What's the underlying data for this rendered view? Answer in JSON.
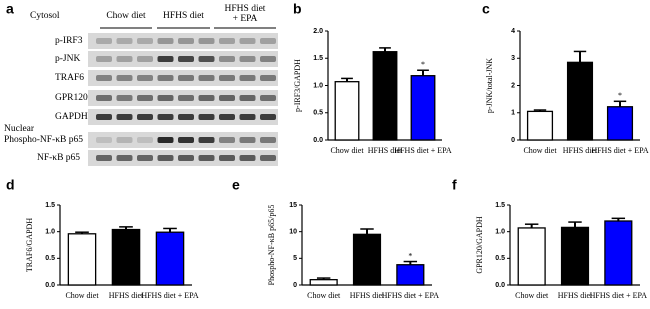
{
  "blot": {
    "panel": "a",
    "section": "Cytosol",
    "groups": [
      {
        "lines": [
          "Chow diet"
        ]
      },
      {
        "lines": [
          "HFHS diet"
        ]
      },
      {
        "lines": [
          "HFHS diet",
          "+ EPA"
        ]
      }
    ],
    "rows": [
      "p-IRF3",
      "p-JNK",
      "TRAF6",
      "GPR120",
      "GAPDH",
      "Phospho-NF-κB p65",
      "NF-κB p65"
    ],
    "nuclear": "Nuclear"
  },
  "chart_data": [
    {
      "type": "bar",
      "panel": "b",
      "ylabel": "p-IRF3/GAPDH",
      "categories": [
        "Chow diet",
        "HFHS diet",
        "HFHS diet + EPA"
      ],
      "colors": [
        "#ffffff",
        "#000000",
        "#0000ff"
      ],
      "values": [
        1.07,
        1.62,
        1.18
      ],
      "errors": [
        0.06,
        0.07,
        0.1
      ],
      "significance": [
        null,
        null,
        "*"
      ],
      "ylim": [
        0,
        2
      ],
      "yticks": [
        {
          "value": 0,
          "label": "0.0"
        },
        0.5,
        {
          "value": 1,
          "label": "1.0"
        },
        1.5,
        {
          "value": 2,
          "label": "2.0"
        }
      ]
    },
    {
      "type": "bar",
      "panel": "c",
      "ylabel": "p-JNK/total-JNK",
      "categories": [
        "Chow diet",
        "HFHS diet",
        "HFHS diet + EPA"
      ],
      "colors": [
        "#ffffff",
        "#000000",
        "#0000ff"
      ],
      "values": [
        1.05,
        2.85,
        1.22
      ],
      "errors": [
        0.05,
        0.4,
        0.2
      ],
      "significance": [
        null,
        null,
        "*"
      ],
      "ylim": [
        0,
        4
      ],
      "yticks": [
        0,
        1,
        2,
        3,
        4
      ]
    },
    {
      "type": "bar",
      "panel": "d",
      "ylabel": "TRAF6/GAPDH",
      "categories": [
        "Chow diet",
        "HFHS diet",
        "HFHS diet + EPA"
      ],
      "colors": [
        "#ffffff",
        "#000000",
        "#0000ff"
      ],
      "values": [
        0.96,
        1.04,
        0.99
      ],
      "errors": [
        0.03,
        0.05,
        0.07
      ],
      "significance": [
        null,
        null,
        null
      ],
      "ylim": [
        0,
        1.5
      ],
      "yticks": [
        {
          "value": 0,
          "label": "0.0"
        },
        0.5,
        {
          "value": 1,
          "label": "1.0"
        },
        1.5
      ]
    },
    {
      "type": "bar",
      "panel": "e",
      "ylabel": "Phospho-NF-κB p65/p65",
      "categories": [
        "Chow diet",
        "HFHS diet",
        "HFHS diet + EPA"
      ],
      "colors": [
        "#ffffff",
        "#000000",
        "#0000ff"
      ],
      "values": [
        1.0,
        9.5,
        3.8
      ],
      "errors": [
        0.3,
        1.0,
        0.6
      ],
      "significance": [
        null,
        null,
        "*"
      ],
      "ylim": [
        0,
        15
      ],
      "yticks": [
        0,
        5,
        10,
        15
      ]
    },
    {
      "type": "bar",
      "panel": "f",
      "ylabel": "GPR120/GAPDH",
      "categories": [
        "Chow diet",
        "HFHS diet",
        "HFHS diet + EPA"
      ],
      "colors": [
        "#ffffff",
        "#000000",
        "#0000ff"
      ],
      "values": [
        1.07,
        1.08,
        1.2
      ],
      "errors": [
        0.07,
        0.1,
        0.05
      ],
      "significance": [
        null,
        null,
        null
      ],
      "ylim": [
        0,
        1.5
      ],
      "yticks": [
        {
          "value": 0,
          "label": "0.0"
        },
        0.5,
        {
          "value": 1,
          "label": "1.0"
        },
        1.5
      ]
    }
  ]
}
